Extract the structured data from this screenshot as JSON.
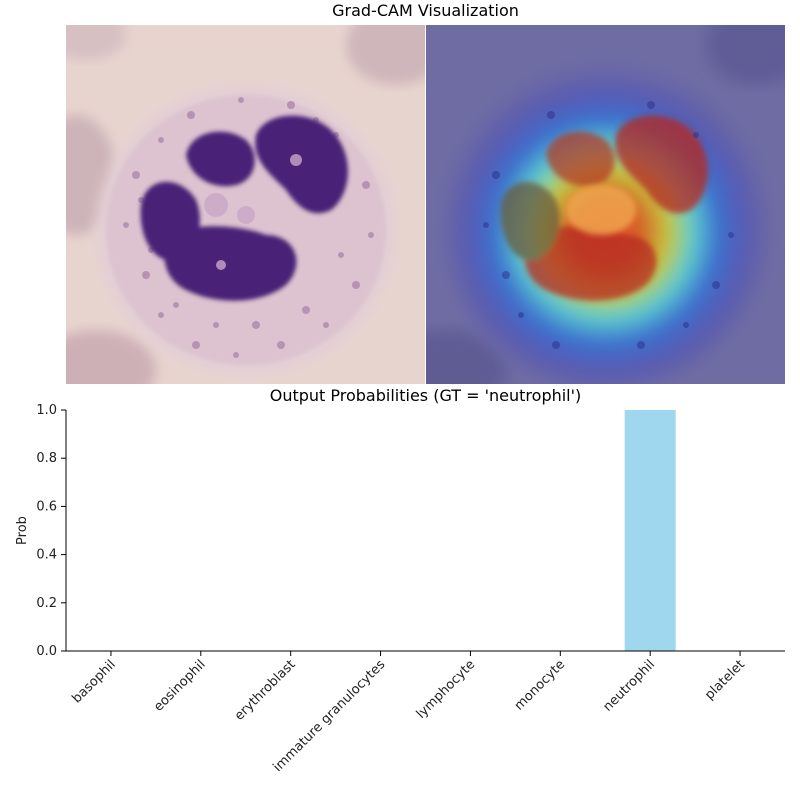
{
  "top_title": "Grad-CAM Visualization",
  "images": {
    "left": "original-cell-image",
    "right": "gradcam-heatmap-overlay"
  },
  "chart_data": {
    "type": "bar",
    "title": "Output Probabilities (GT = 'neutrophil')",
    "xlabel": "",
    "ylabel": "Prob",
    "categories": [
      "basophil",
      "eosinophil",
      "erythroblast",
      "immature granulocytes",
      "lymphocyte",
      "monocyte",
      "neutrophil",
      "platelet"
    ],
    "values": [
      0.0,
      0.0,
      0.0,
      0.0,
      0.0,
      0.0,
      1.0,
      0.0
    ],
    "ylim": [
      0,
      1.0
    ],
    "yticks": [
      "0.0",
      "0.2",
      "0.4",
      "0.6",
      "0.8",
      "1.0"
    ],
    "bar_color": "#9fd8ee",
    "grid": false
  }
}
